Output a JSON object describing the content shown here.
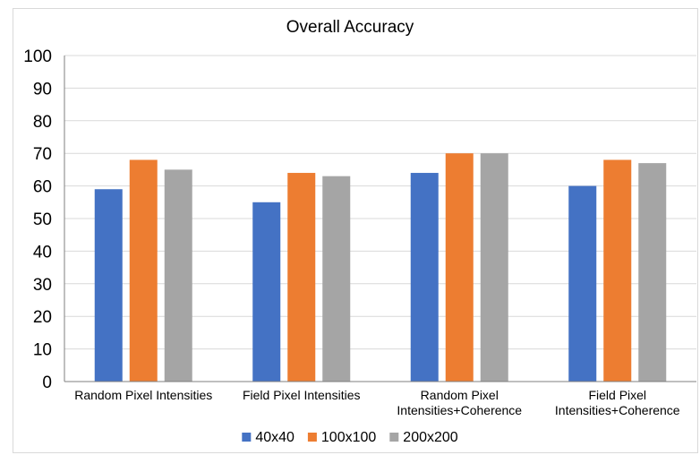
{
  "chart_data": {
    "type": "bar",
    "title": "Overall Accuracy",
    "xlabel": "",
    "ylabel": "",
    "ylim": [
      0,
      100
    ],
    "yticks": [
      0,
      10,
      20,
      30,
      40,
      50,
      60,
      70,
      80,
      90,
      100
    ],
    "grid": true,
    "legend_position": "bottom",
    "categories": [
      [
        "Random Pixel Intensities"
      ],
      [
        "Field Pixel Intensities"
      ],
      [
        "Random Pixel",
        "Intensities+Coherence"
      ],
      [
        "Field Pixel",
        "Intensities+Coherence"
      ]
    ],
    "series": [
      {
        "name": "40x40",
        "color": "#4472C4",
        "values": [
          59,
          55,
          64,
          60
        ]
      },
      {
        "name": "100x100",
        "color": "#ED7D31",
        "values": [
          68,
          64,
          70,
          68
        ]
      },
      {
        "name": "200x200",
        "color": "#A5A5A5",
        "values": [
          65,
          63,
          70,
          67
        ]
      }
    ]
  }
}
